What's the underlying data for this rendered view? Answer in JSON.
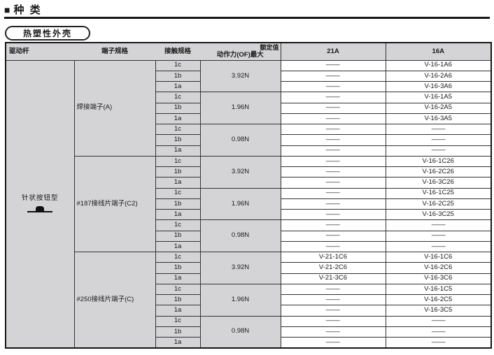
{
  "section": {
    "marker": "■",
    "title": "种 类"
  },
  "housing_label": "热塑性外壳",
  "table": {
    "headers": {
      "drive": "驱动杆",
      "terminal": "端子规格",
      "contact": "接触规格",
      "rated": "额定值",
      "force": "动作力(OF)最大",
      "amp21": "21A",
      "amp16": "16A"
    },
    "drive_lever": {
      "label": "针状按钮型",
      "icon": "pin-plunger-icon"
    },
    "groups": [
      {
        "terminal": "焊接端子(A)",
        "blocks": [
          {
            "force": "3.92N",
            "rows": [
              {
                "contact": "1c",
                "amp21": "—",
                "amp16": "V-16-1A6"
              },
              {
                "contact": "1b",
                "amp21": "—",
                "amp16": "V-16-2A6"
              },
              {
                "contact": "1a",
                "amp21": "—",
                "amp16": "V-16-3A6"
              }
            ]
          },
          {
            "force": "1.96N",
            "rows": [
              {
                "contact": "1c",
                "amp21": "—",
                "amp16": "V-16-1A5"
              },
              {
                "contact": "1b",
                "amp21": "—",
                "amp16": "V-16-2A5"
              },
              {
                "contact": "1a",
                "amp21": "—",
                "amp16": "V-16-3A5"
              }
            ]
          },
          {
            "force": "0.98N",
            "rows": [
              {
                "contact": "1c",
                "amp21": "—",
                "amp16": "—"
              },
              {
                "contact": "1b",
                "amp21": "—",
                "amp16": "—"
              },
              {
                "contact": "1a",
                "amp21": "—",
                "amp16": "—"
              }
            ]
          }
        ]
      },
      {
        "terminal": "#187接线片端子(C2)",
        "blocks": [
          {
            "force": "3.92N",
            "rows": [
              {
                "contact": "1c",
                "amp21": "—",
                "amp16": "V-16-1C26"
              },
              {
                "contact": "1b",
                "amp21": "—",
                "amp16": "V-16-2C26"
              },
              {
                "contact": "1a",
                "amp21": "—",
                "amp16": "V-16-3C26"
              }
            ]
          },
          {
            "force": "1.96N",
            "rows": [
              {
                "contact": "1c",
                "amp21": "—",
                "amp16": "V-16-1C25"
              },
              {
                "contact": "1b",
                "amp21": "—",
                "amp16": "V-16-2C25"
              },
              {
                "contact": "1a",
                "amp21": "—",
                "amp16": "V-16-3C25"
              }
            ]
          },
          {
            "force": "0.98N",
            "rows": [
              {
                "contact": "1c",
                "amp21": "—",
                "amp16": "—"
              },
              {
                "contact": "1b",
                "amp21": "—",
                "amp16": "—"
              },
              {
                "contact": "1a",
                "amp21": "—",
                "amp16": "—"
              }
            ]
          }
        ]
      },
      {
        "terminal": "#250接线片端子(C)",
        "blocks": [
          {
            "force": "3.92N",
            "rows": [
              {
                "contact": "1c",
                "amp21": "V-21-1C6",
                "amp16": "V-16-1C6"
              },
              {
                "contact": "1b",
                "amp21": "V-21-2C6",
                "amp16": "V-16-2C6"
              },
              {
                "contact": "1a",
                "amp21": "V-21-3C6",
                "amp16": "V-16-3C6"
              }
            ]
          },
          {
            "force": "1.96N",
            "rows": [
              {
                "contact": "1c",
                "amp21": "—",
                "amp16": "V-16-1C5"
              },
              {
                "contact": "1b",
                "amp21": "—",
                "amp16": "V-16-2C5"
              },
              {
                "contact": "1a",
                "amp21": "—",
                "amp16": "V-16-3C5"
              }
            ]
          },
          {
            "force": "0.98N",
            "rows": [
              {
                "contact": "1c",
                "amp21": "—",
                "amp16": "—"
              },
              {
                "contact": "1b",
                "amp21": "—",
                "amp16": "—"
              },
              {
                "contact": "1a",
                "amp21": "—",
                "amp16": "—"
              }
            ]
          }
        ]
      }
    ]
  }
}
